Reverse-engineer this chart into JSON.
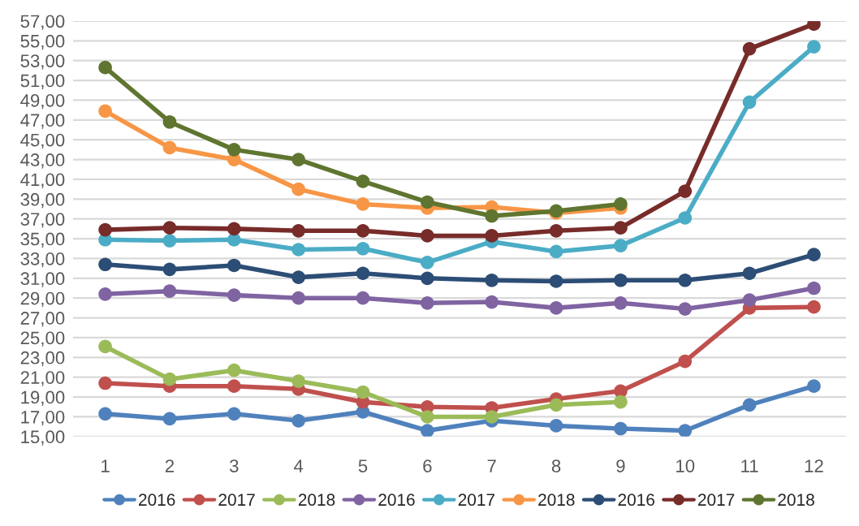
{
  "chart_data": {
    "type": "line",
    "categories": [
      "1",
      "2",
      "3",
      "4",
      "5",
      "6",
      "7",
      "8",
      "9",
      "10",
      "11",
      "12"
    ],
    "series": [
      {
        "name": "2016",
        "color": "#4f81bd",
        "values": [
          17.3,
          16.8,
          17.3,
          16.6,
          17.5,
          15.6,
          16.6,
          16.1,
          15.8,
          15.6,
          18.2,
          20.1
        ]
      },
      {
        "name": "2017",
        "color": "#c0504d",
        "values": [
          20.4,
          20.1,
          20.1,
          19.8,
          18.5,
          18.0,
          17.9,
          18.8,
          19.6,
          22.6,
          28.0,
          28.1
        ]
      },
      {
        "name": "2018",
        "color": "#9bbb59",
        "values": [
          24.1,
          20.8,
          21.7,
          20.6,
          19.5,
          17.0,
          17.0,
          18.2,
          18.5,
          null,
          null,
          null
        ]
      },
      {
        "name": "2016",
        "color": "#8064a2",
        "values": [
          29.4,
          29.7,
          29.3,
          29.0,
          29.0,
          28.5,
          28.6,
          28.0,
          28.5,
          27.9,
          28.8,
          30.0
        ]
      },
      {
        "name": "2017",
        "color": "#4bacc6",
        "values": [
          34.9,
          34.8,
          34.9,
          33.9,
          34.0,
          32.6,
          34.7,
          33.7,
          34.3,
          37.1,
          48.8,
          54.4
        ]
      },
      {
        "name": "2018",
        "color": "#f79646",
        "values": [
          47.9,
          44.2,
          43.0,
          40.0,
          38.5,
          38.1,
          38.2,
          37.6,
          38.1,
          null,
          null,
          null
        ]
      },
      {
        "name": "2016",
        "color": "#2c4d75",
        "values": [
          32.4,
          31.9,
          32.3,
          31.1,
          31.5,
          31.0,
          30.8,
          30.7,
          30.8,
          30.8,
          31.5,
          33.4
        ]
      },
      {
        "name": "2017",
        "color": "#772c2a",
        "values": [
          35.9,
          36.1,
          36.0,
          35.8,
          35.8,
          35.3,
          35.3,
          35.8,
          36.1,
          39.8,
          54.2,
          56.7
        ]
      },
      {
        "name": "2018",
        "color": "#5f7530",
        "values": [
          52.3,
          46.8,
          44.0,
          43.0,
          40.8,
          38.7,
          37.3,
          37.8,
          38.5,
          null,
          null,
          null
        ]
      }
    ],
    "ylim": [
      15,
      57
    ],
    "yticks": [
      {
        "value": 15,
        "label": "15,00"
      },
      {
        "value": 17,
        "label": "17,00"
      },
      {
        "value": 19,
        "label": "19,00"
      },
      {
        "value": 21,
        "label": "21,00"
      },
      {
        "value": 23,
        "label": "23,00"
      },
      {
        "value": 25,
        "label": "25,00"
      },
      {
        "value": 27,
        "label": "27,00"
      },
      {
        "value": 29,
        "label": "29,00"
      },
      {
        "value": 31,
        "label": "31,00"
      },
      {
        "value": 33,
        "label": "33,00"
      },
      {
        "value": 35,
        "label": "35,00"
      },
      {
        "value": 37,
        "label": "37,00"
      },
      {
        "value": 39,
        "label": "39,00"
      },
      {
        "value": 41,
        "label": "41,00"
      },
      {
        "value": 43,
        "label": "43,00"
      },
      {
        "value": 45,
        "label": "45,00"
      },
      {
        "value": 47,
        "label": "47,00"
      },
      {
        "value": 49,
        "label": "49,00"
      },
      {
        "value": 51,
        "label": "51,00"
      },
      {
        "value": 53,
        "label": "53,00"
      },
      {
        "value": 55,
        "label": "55,00"
      },
      {
        "value": 57,
        "label": "57,00"
      }
    ],
    "grid": "y",
    "legend": "bottom",
    "marker": "circle",
    "line_style": "solid"
  }
}
